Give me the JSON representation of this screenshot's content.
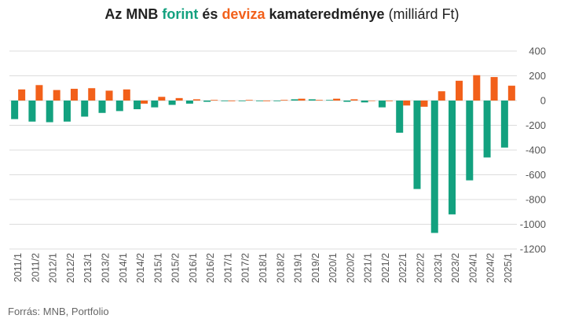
{
  "title": {
    "part1": "Az MNB ",
    "forint": "forint",
    "part2": " és ",
    "deviza": "deviza",
    "part3": " kamateredménye",
    "unit": " (milliárd Ft)"
  },
  "source": "Forrás: MNB, Portfolio",
  "colors": {
    "forint": "#13A17F",
    "deviza": "#F2601A",
    "grid": "#dcdcdc",
    "axis_text": "#555555"
  },
  "chart_data": {
    "type": "bar",
    "categories": [
      "2011/1",
      "2011/2",
      "2012/1",
      "2012/2",
      "2013/1",
      "2013/2",
      "2014/1",
      "2014/2",
      "2015/1",
      "2015/2",
      "2016/1",
      "2016/2",
      "2017/1",
      "2017/2",
      "2018/1",
      "2018/2",
      "2019/1",
      "2019/2",
      "2020/1",
      "2020/2",
      "2021/1",
      "2021/2",
      "2022/1",
      "2022/2",
      "2023/1",
      "2023/2",
      "2024/1",
      "2024/2",
      "2025/1"
    ],
    "series": [
      {
        "name": "forint",
        "color": "#13A17F",
        "values": [
          -150,
          -170,
          -175,
          -170,
          -130,
          -100,
          -85,
          -70,
          -55,
          -35,
          -25,
          -10,
          -5,
          -5,
          -5,
          -5,
          10,
          10,
          5,
          -10,
          -15,
          -55,
          -260,
          -715,
          -1070,
          -920,
          -645,
          -460,
          -380
        ]
      },
      {
        "name": "deviza",
        "color": "#F2601A",
        "values": [
          90,
          125,
          85,
          95,
          100,
          80,
          90,
          -25,
          30,
          20,
          10,
          5,
          -5,
          5,
          -5,
          5,
          15,
          5,
          15,
          10,
          0,
          -5,
          -40,
          -50,
          75,
          160,
          205,
          190,
          120
        ]
      }
    ],
    "yticks": [
      400,
      200,
      0,
      -200,
      -400,
      -600,
      -800,
      -1000,
      -1200
    ],
    "ylim": [
      -1200,
      400
    ],
    "grid": true,
    "y_axis_side": "right",
    "legend": "in title"
  }
}
